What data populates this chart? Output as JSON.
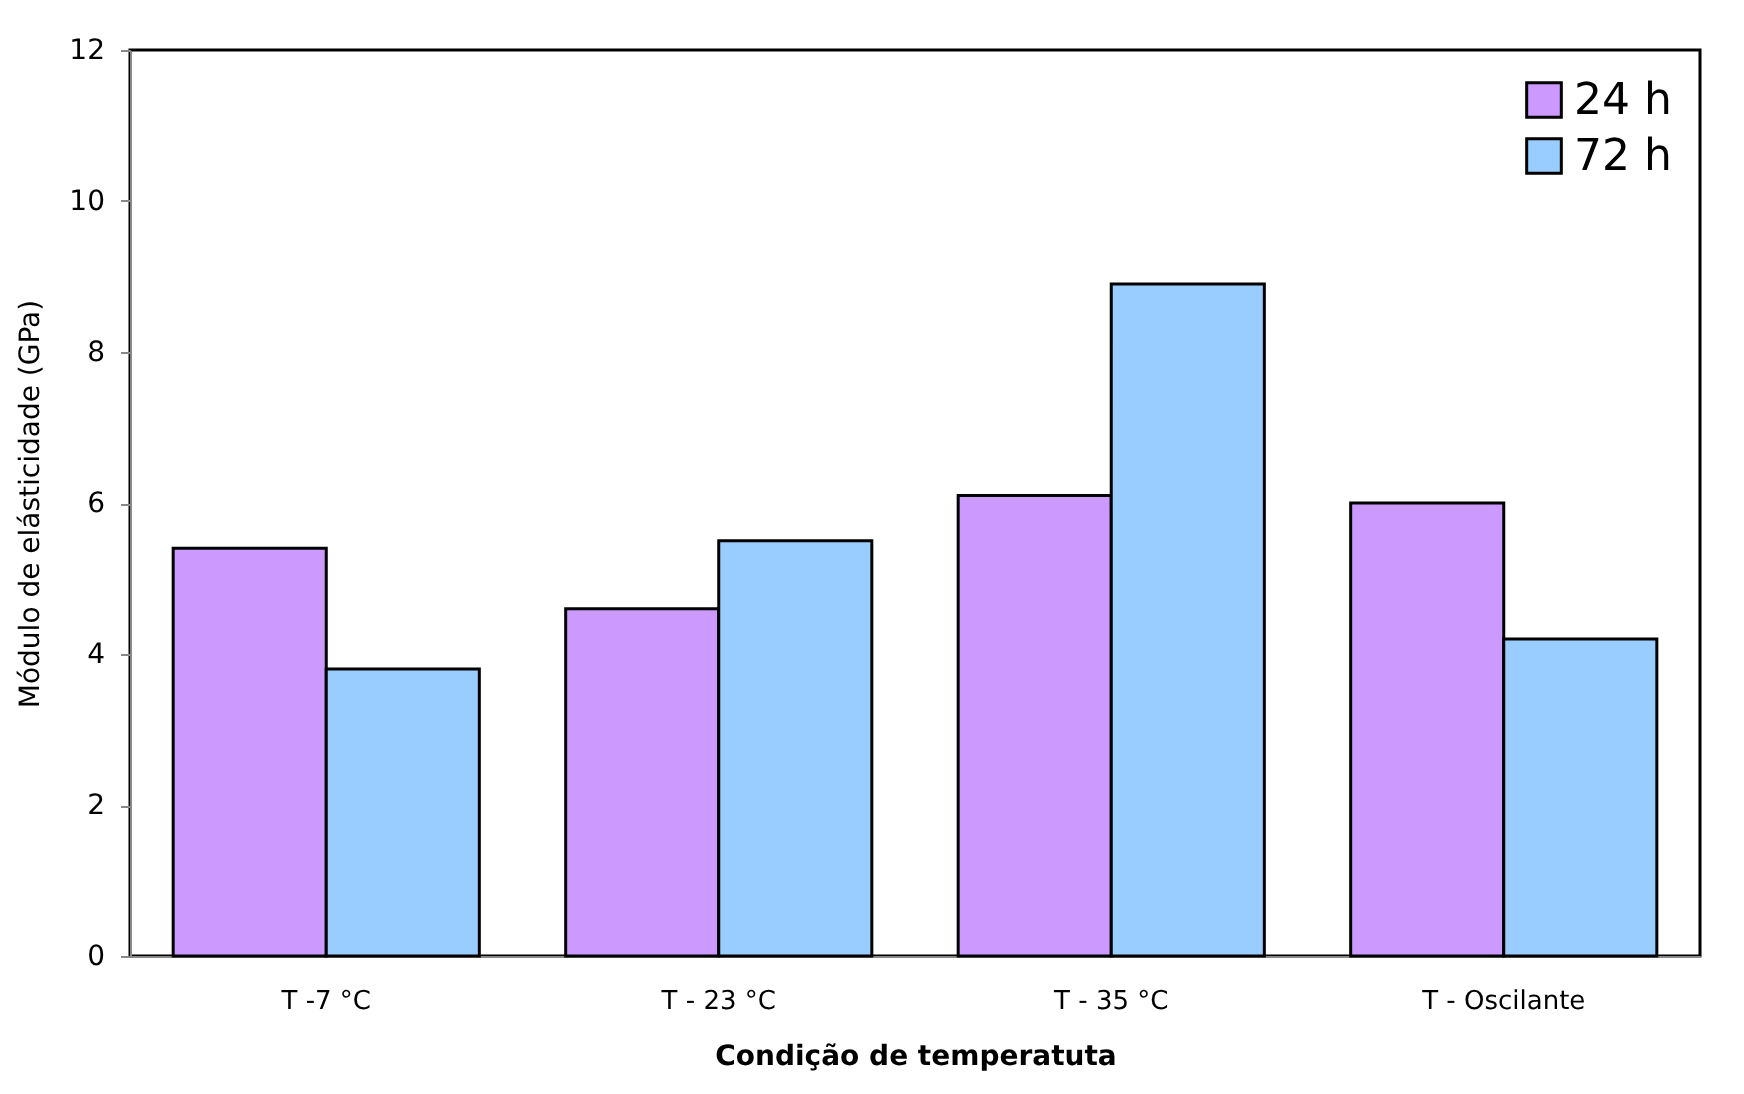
{
  "chart_data": {
    "type": "bar",
    "xlabel": "Condição de temperatuta",
    "ylabel": "Módulo de elásticidade (GPa)",
    "categories": [
      "T -7 °C",
      "T - 23 °C",
      "T - 35 °C",
      "T - Oscilante"
    ],
    "series": [
      {
        "name": "24 h",
        "color": "#cc99ff",
        "values": [
          5.4,
          4.6,
          6.1,
          6.0
        ]
      },
      {
        "name": "72 h",
        "color": "#99ccff",
        "values": [
          3.8,
          5.5,
          8.9,
          4.2
        ]
      }
    ],
    "ylim": [
      0,
      12
    ],
    "yticks": [
      0,
      2,
      4,
      6,
      8,
      10,
      12
    ],
    "grid": false,
    "legend": "top right"
  }
}
